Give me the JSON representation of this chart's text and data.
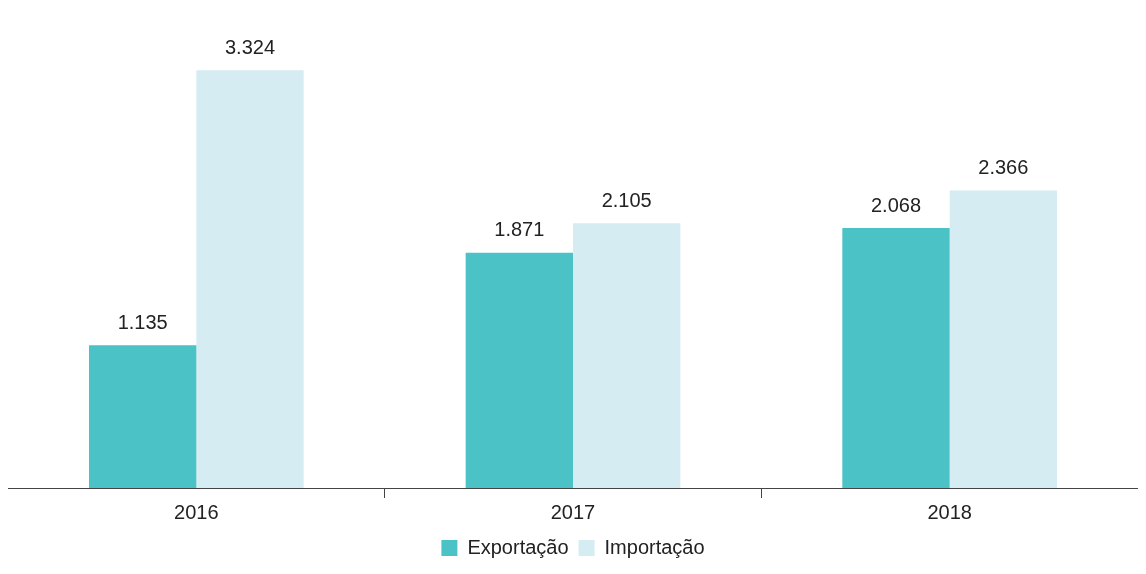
{
  "chart_data": {
    "type": "bar",
    "categories": [
      "2016",
      "2017",
      "2018"
    ],
    "series": [
      {
        "name": "Exportação",
        "color": "#4ac2c6",
        "values": [
          1.135,
          1.871,
          2.068
        ]
      },
      {
        "name": "Importação",
        "color": "#d4ecf2",
        "values": [
          3.324,
          2.105,
          2.366
        ]
      }
    ],
    "data_labels": true,
    "legend": "bottom",
    "grid": false
  }
}
